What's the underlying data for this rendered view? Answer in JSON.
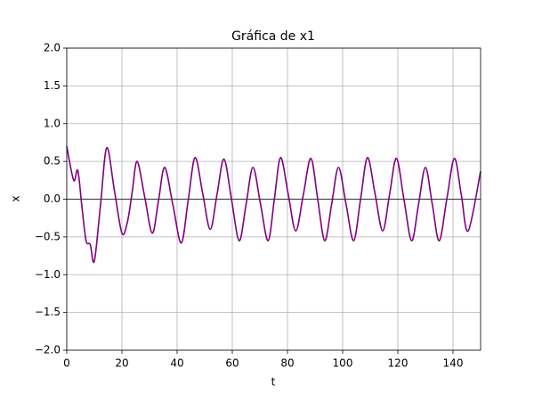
{
  "chart_data": {
    "type": "line",
    "title": "Gráfica de x1",
    "x_label": "t",
    "y_label": "x",
    "x": [
      0,
      2.5,
      4,
      5.5,
      7,
      8.5,
      10,
      12.25,
      14.5,
      17.25,
      20,
      22,
      23.75,
      25.5,
      28.25,
      31,
      33.25,
      35.5,
      38.5,
      41.5,
      44,
      46.5,
      49.25,
      52,
      54.5,
      57,
      59.75,
      62.5,
      65,
      67.5,
      70.25,
      73,
      75.25,
      77.5,
      80.25,
      83,
      85.75,
      88.5,
      91,
      93.5,
      96,
      98.5,
      101.25,
      104,
      106.5,
      109,
      111.75,
      114.5,
      117,
      119.5,
      122.25,
      125,
      127.5,
      130,
      132.5,
      135,
      137.75,
      140.5,
      143,
      145.5,
      150
    ],
    "series": [
      {
        "name": "x1",
        "color": "#800080",
        "values": [
          0.7,
          0.25,
          0.38,
          -0.1,
          -0.55,
          -0.6,
          -0.82,
          -0.07,
          0.68,
          0.12,
          -0.45,
          -0.3,
          0.1,
          0.5,
          0.03,
          -0.45,
          -0.02,
          0.42,
          -0.08,
          -0.58,
          -0.02,
          0.55,
          0.08,
          -0.4,
          0.07,
          0.53,
          -0.01,
          -0.55,
          -0.07,
          0.42,
          -0.07,
          -0.55,
          0,
          0.55,
          0.07,
          -0.42,
          0.06,
          0.54,
          -0.01,
          -0.55,
          -0.07,
          0.42,
          -0.07,
          -0.55,
          0,
          0.55,
          0.07,
          -0.42,
          0.06,
          0.54,
          -0.01,
          -0.55,
          -0.07,
          0.42,
          -0.07,
          -0.55,
          0,
          0.54,
          0.06,
          -0.42,
          0.37
        ]
      }
    ],
    "xlim": [
      0,
      150
    ],
    "ylim": [
      -2,
      2
    ],
    "xticks": [
      0,
      20,
      40,
      60,
      80,
      100,
      120,
      140
    ],
    "yticks": [
      {
        "value": -2,
        "label": "−2.0"
      },
      {
        "value": -1.5,
        "label": "−1.5"
      },
      {
        "value": -1,
        "label": "−1.0"
      },
      {
        "value": -0.5,
        "label": "−0.5"
      },
      {
        "value": 0,
        "label": "0.0"
      },
      {
        "value": 0.5,
        "label": "0.5"
      },
      {
        "value": 1,
        "label": "1.0"
      },
      {
        "value": 1.5,
        "label": "1.5"
      },
      {
        "value": 2,
        "label": "2.0"
      }
    ],
    "grid": true,
    "axhline": 0
  }
}
